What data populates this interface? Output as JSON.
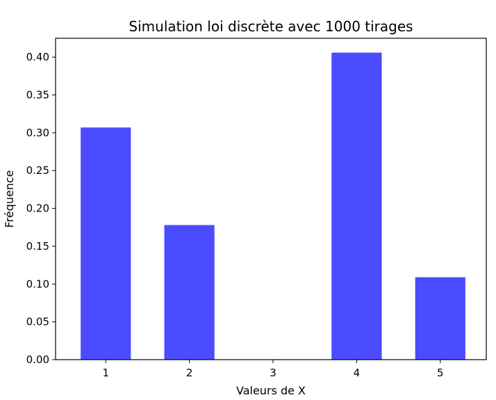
{
  "chart_data": {
    "type": "bar",
    "title": "Simulation loi discrète avec 1000 tirages",
    "xlabel": "Valeurs de X",
    "ylabel": "Fréquence",
    "categories": [
      "1",
      "2",
      "3",
      "4",
      "5"
    ],
    "values": [
      0.307,
      0.178,
      0.0,
      0.406,
      0.109
    ],
    "ylim": [
      0,
      0.425
    ],
    "xlim": [
      0.4,
      5.55
    ],
    "yticks": [
      "0.00",
      "0.05",
      "0.10",
      "0.15",
      "0.20",
      "0.25",
      "0.30",
      "0.35",
      "0.40"
    ],
    "bar_color": "#4b4bff",
    "grid": false,
    "legend": "none"
  }
}
